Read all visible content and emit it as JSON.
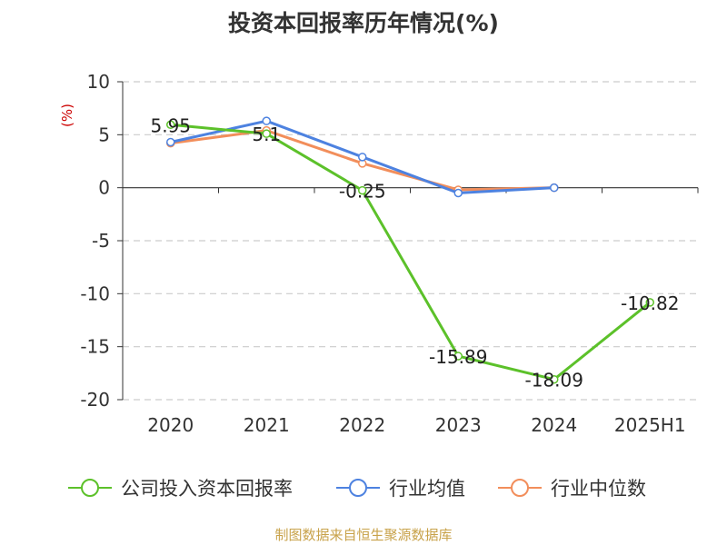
{
  "chart_data": {
    "type": "line",
    "title": "投资本回报率历年情况(%)",
    "ylabel": "(%)",
    "xlabel": "",
    "categories": [
      "2020",
      "2021",
      "2022",
      "2023",
      "2024",
      "2025H1"
    ],
    "ylim": [
      -20,
      10
    ],
    "yticks": [
      10,
      5,
      0,
      -5,
      -10,
      -15,
      -20
    ],
    "grid": true,
    "legend_position": "bottom",
    "series": [
      {
        "name": "公司投入资本回报率",
        "color": "#5cc12a",
        "values": [
          5.95,
          5.1,
          -0.25,
          -15.89,
          -18.09,
          -10.82
        ],
        "labels": [
          "5.95",
          "5.1",
          "-0.25",
          "-15.89",
          "-18.09",
          "-10.82"
        ]
      },
      {
        "name": "行业均值",
        "color": "#4d82e0",
        "values": [
          4.3,
          6.3,
          2.9,
          -0.5,
          0.0,
          null
        ]
      },
      {
        "name": "行业中位数",
        "color": "#f28e5b",
        "values": [
          4.2,
          5.4,
          2.3,
          -0.2,
          0.0,
          null
        ]
      }
    ]
  },
  "source": "制图数据来自恒生聚源数据库"
}
